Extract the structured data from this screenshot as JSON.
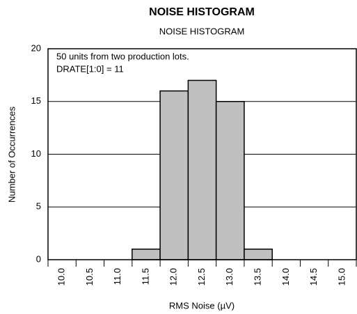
{
  "chart_data": {
    "type": "bar",
    "title": "NOISE HISTOGRAM",
    "subtitle": "NOISE HISTOGRAM",
    "annotations": [
      "50 units from two production lots.",
      "DRATE[1:0] = 11"
    ],
    "x_label": "RMS Noise (µV)",
    "y_label": "Number of Occurrences",
    "categories": [
      "10.0",
      "10.5",
      "11.0",
      "11.5",
      "12.0",
      "12.5",
      "13.0",
      "13.5",
      "14.0",
      "14.5",
      "15.0"
    ],
    "values": [
      0,
      0,
      0,
      1,
      16,
      17,
      15,
      1,
      0,
      0,
      0
    ],
    "color": "#c0c0c0",
    "ylim": [
      0,
      20
    ],
    "yticks": [
      0,
      5,
      10,
      15,
      20
    ],
    "grid": true
  }
}
